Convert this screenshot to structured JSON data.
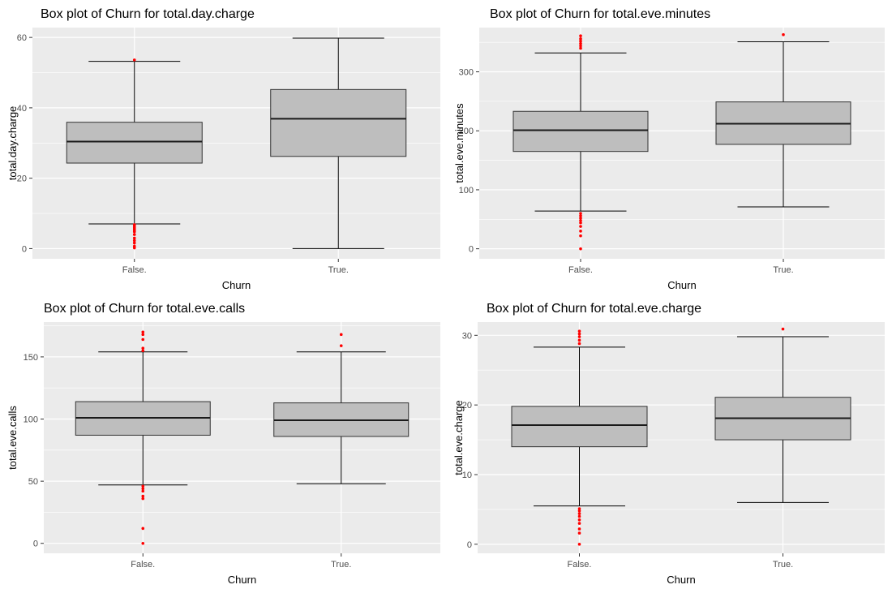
{
  "chart_data": [
    {
      "type": "box",
      "title": "Box plot of Churn for total.day.charge",
      "xlabel": "Churn",
      "ylabel": "total.day.charge",
      "categories": [
        "False.",
        "True."
      ],
      "yticks": [
        0,
        20,
        40,
        60
      ],
      "ylim": [
        -2.9,
        62.8
      ],
      "boxes": [
        {
          "category": "False.",
          "whisker_low": 7,
          "q1": 24.3,
          "median": 30.4,
          "q3": 35.9,
          "whisker_high": 53.2,
          "outliers": [
            53.6,
            6.8,
            6.4,
            6.0,
            5.6,
            5.2,
            4.8,
            4.0,
            3.0,
            2.3,
            1.6,
            0.7,
            0.2
          ]
        },
        {
          "category": "True.",
          "whisker_low": 0.0,
          "q1": 26.2,
          "median": 36.9,
          "q3": 45.2,
          "whisker_high": 59.8,
          "outliers": []
        }
      ],
      "colors": {
        "panel": "#ebebeb",
        "grid": "#ffffff",
        "box_fill": "#bebebe",
        "outlier": "#ff0000"
      }
    },
    {
      "type": "box",
      "title": "Box plot of Churn for total.eve.minutes",
      "xlabel": "Churn",
      "ylabel": "total.eve.minutes",
      "categories": [
        "False.",
        "True."
      ],
      "yticks": [
        0,
        100,
        200,
        300
      ],
      "ylim": [
        -17,
        375
      ],
      "boxes": [
        {
          "category": "False.",
          "whisker_low": 64,
          "q1": 165,
          "median": 201,
          "q3": 233,
          "whisker_high": 332,
          "outliers": [
            340,
            344,
            348,
            352,
            356,
            361,
            60,
            56,
            52,
            48,
            44,
            38,
            30,
            22,
            0
          ]
        },
        {
          "category": "True.",
          "whisker_low": 71,
          "q1": 177,
          "median": 212,
          "q3": 249,
          "whisker_high": 351,
          "outliers": [
            363
          ]
        }
      ],
      "colors": {
        "panel": "#ebebeb",
        "grid": "#ffffff",
        "box_fill": "#bebebe",
        "outlier": "#ff0000"
      }
    },
    {
      "type": "box",
      "title": "Box plot of Churn for total.eve.calls",
      "xlabel": "Churn",
      "ylabel": "total.eve.calls",
      "categories": [
        "False.",
        "True."
      ],
      "yticks": [
        0,
        50,
        100,
        150
      ],
      "ylim": [
        -8,
        178
      ],
      "boxes": [
        {
          "category": "False.",
          "whisker_low": 47,
          "q1": 87,
          "median": 101,
          "q3": 114,
          "whisker_high": 154,
          "outliers": [
            155,
            157,
            164,
            168,
            170,
            46,
            44,
            42,
            38,
            36,
            12,
            0
          ]
        },
        {
          "category": "True.",
          "whisker_low": 48,
          "q1": 86,
          "median": 99,
          "q3": 113,
          "whisker_high": 154,
          "outliers": [
            159,
            168
          ]
        }
      ],
      "colors": {
        "panel": "#ebebeb",
        "grid": "#ffffff",
        "box_fill": "#bebebe",
        "outlier": "#ff0000"
      }
    },
    {
      "type": "box",
      "title": "Box plot of Churn for total.eve.charge",
      "xlabel": "Churn",
      "ylabel": "total.eve.charge",
      "categories": [
        "False.",
        "True."
      ],
      "yticks": [
        0,
        10,
        20,
        30
      ],
      "ylim": [
        -1.3,
        31.9
      ],
      "boxes": [
        {
          "category": "False.",
          "whisker_low": 5.5,
          "q1": 14.0,
          "median": 17.1,
          "q3": 19.8,
          "whisker_high": 28.3,
          "outliers": [
            28.8,
            29.3,
            29.8,
            30.2,
            30.6,
            5.1,
            4.8,
            4.4,
            4.0,
            3.5,
            3.0,
            2.2,
            1.6,
            0
          ]
        },
        {
          "category": "True.",
          "whisker_low": 6.0,
          "q1": 15.0,
          "median": 18.1,
          "q3": 21.1,
          "whisker_high": 29.8,
          "outliers": [
            30.9
          ]
        }
      ],
      "colors": {
        "panel": "#ebebeb",
        "grid": "#ffffff",
        "box_fill": "#bebebe",
        "outlier": "#ff0000"
      }
    }
  ]
}
